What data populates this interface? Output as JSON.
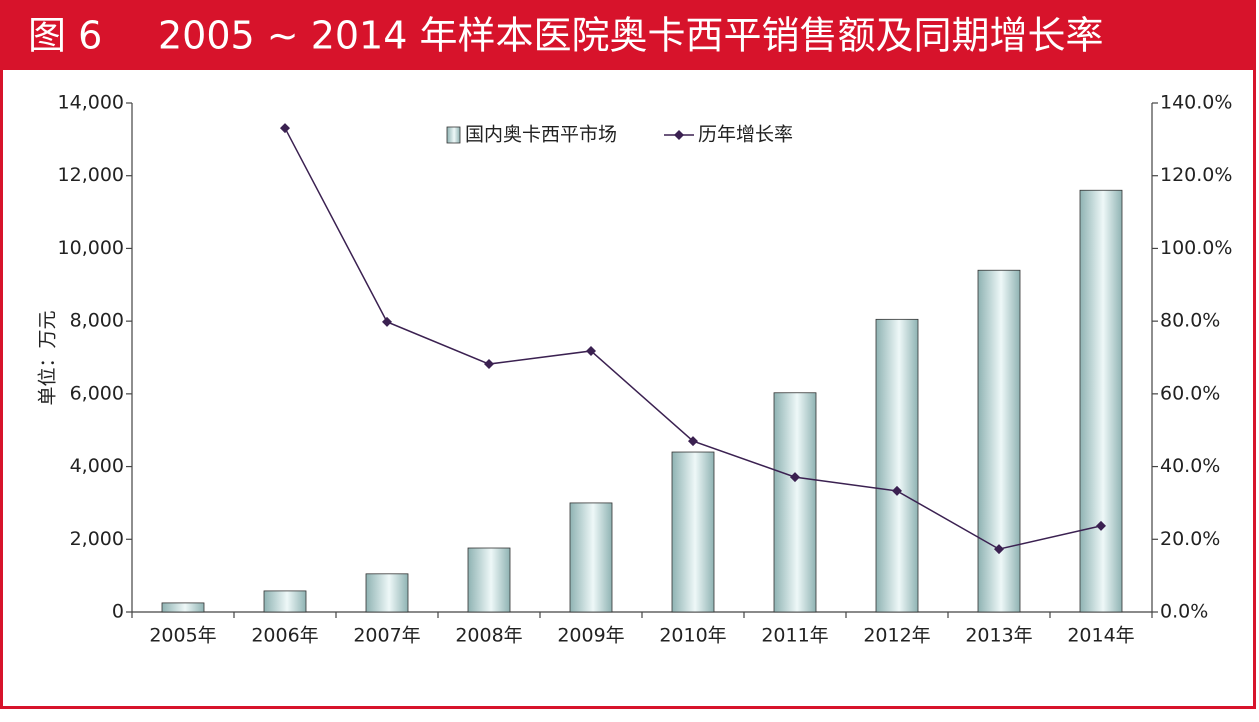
{
  "chart_data": {
    "type": "bar-line",
    "figure_label": "图 6",
    "title": "2005 ~ 2014 年样本医院奥卡西平销售额及同期增长率",
    "y_label": "单位：万元",
    "categories": [
      "2005年",
      "2006年",
      "2007年",
      "2008年",
      "2009年",
      "2010年",
      "2011年",
      "2012年",
      "2013年",
      "2014年"
    ],
    "series": [
      {
        "name": "国内奥卡西平市场",
        "type": "bar",
        "color": "#8fb3b3",
        "values": [
          250,
          580,
          1050,
          1760,
          3000,
          4400,
          6030,
          8050,
          9400,
          11600
        ]
      },
      {
        "name": "历年增长率",
        "type": "line",
        "axis": "y2",
        "color": "#3b2151",
        "values": [
          null,
          133.1,
          79.8,
          68.2,
          71.8,
          47.0,
          37.1,
          33.3,
          17.3,
          23.7
        ]
      }
    ],
    "ylim": [
      0,
      14000
    ],
    "yticks": [
      0,
      {
        "value": 2000,
        "label": "2,000"
      },
      {
        "value": 4000,
        "label": "4,000"
      },
      {
        "value": 6000,
        "label": "6,000"
      },
      {
        "value": 8000,
        "label": "8,000"
      },
      {
        "value": 10000,
        "label": "10,000"
      },
      {
        "value": 12000,
        "label": "12,000"
      },
      {
        "value": 14000,
        "label": "14,000"
      }
    ],
    "y2lim": [
      0,
      140
    ],
    "y2ticks": [
      {
        "value": 0,
        "label": "0.0%"
      },
      {
        "value": 20,
        "label": "20.0%"
      },
      {
        "value": 40,
        "label": "40.0%"
      },
      {
        "value": 60,
        "label": "60.0%"
      },
      {
        "value": 80,
        "label": "80.0%"
      },
      {
        "value": 100,
        "label": "100.0%"
      },
      {
        "value": 120,
        "label": "120.0%"
      },
      {
        "value": 140,
        "label": "140.0%"
      }
    ],
    "grid": false,
    "legend": "top"
  }
}
